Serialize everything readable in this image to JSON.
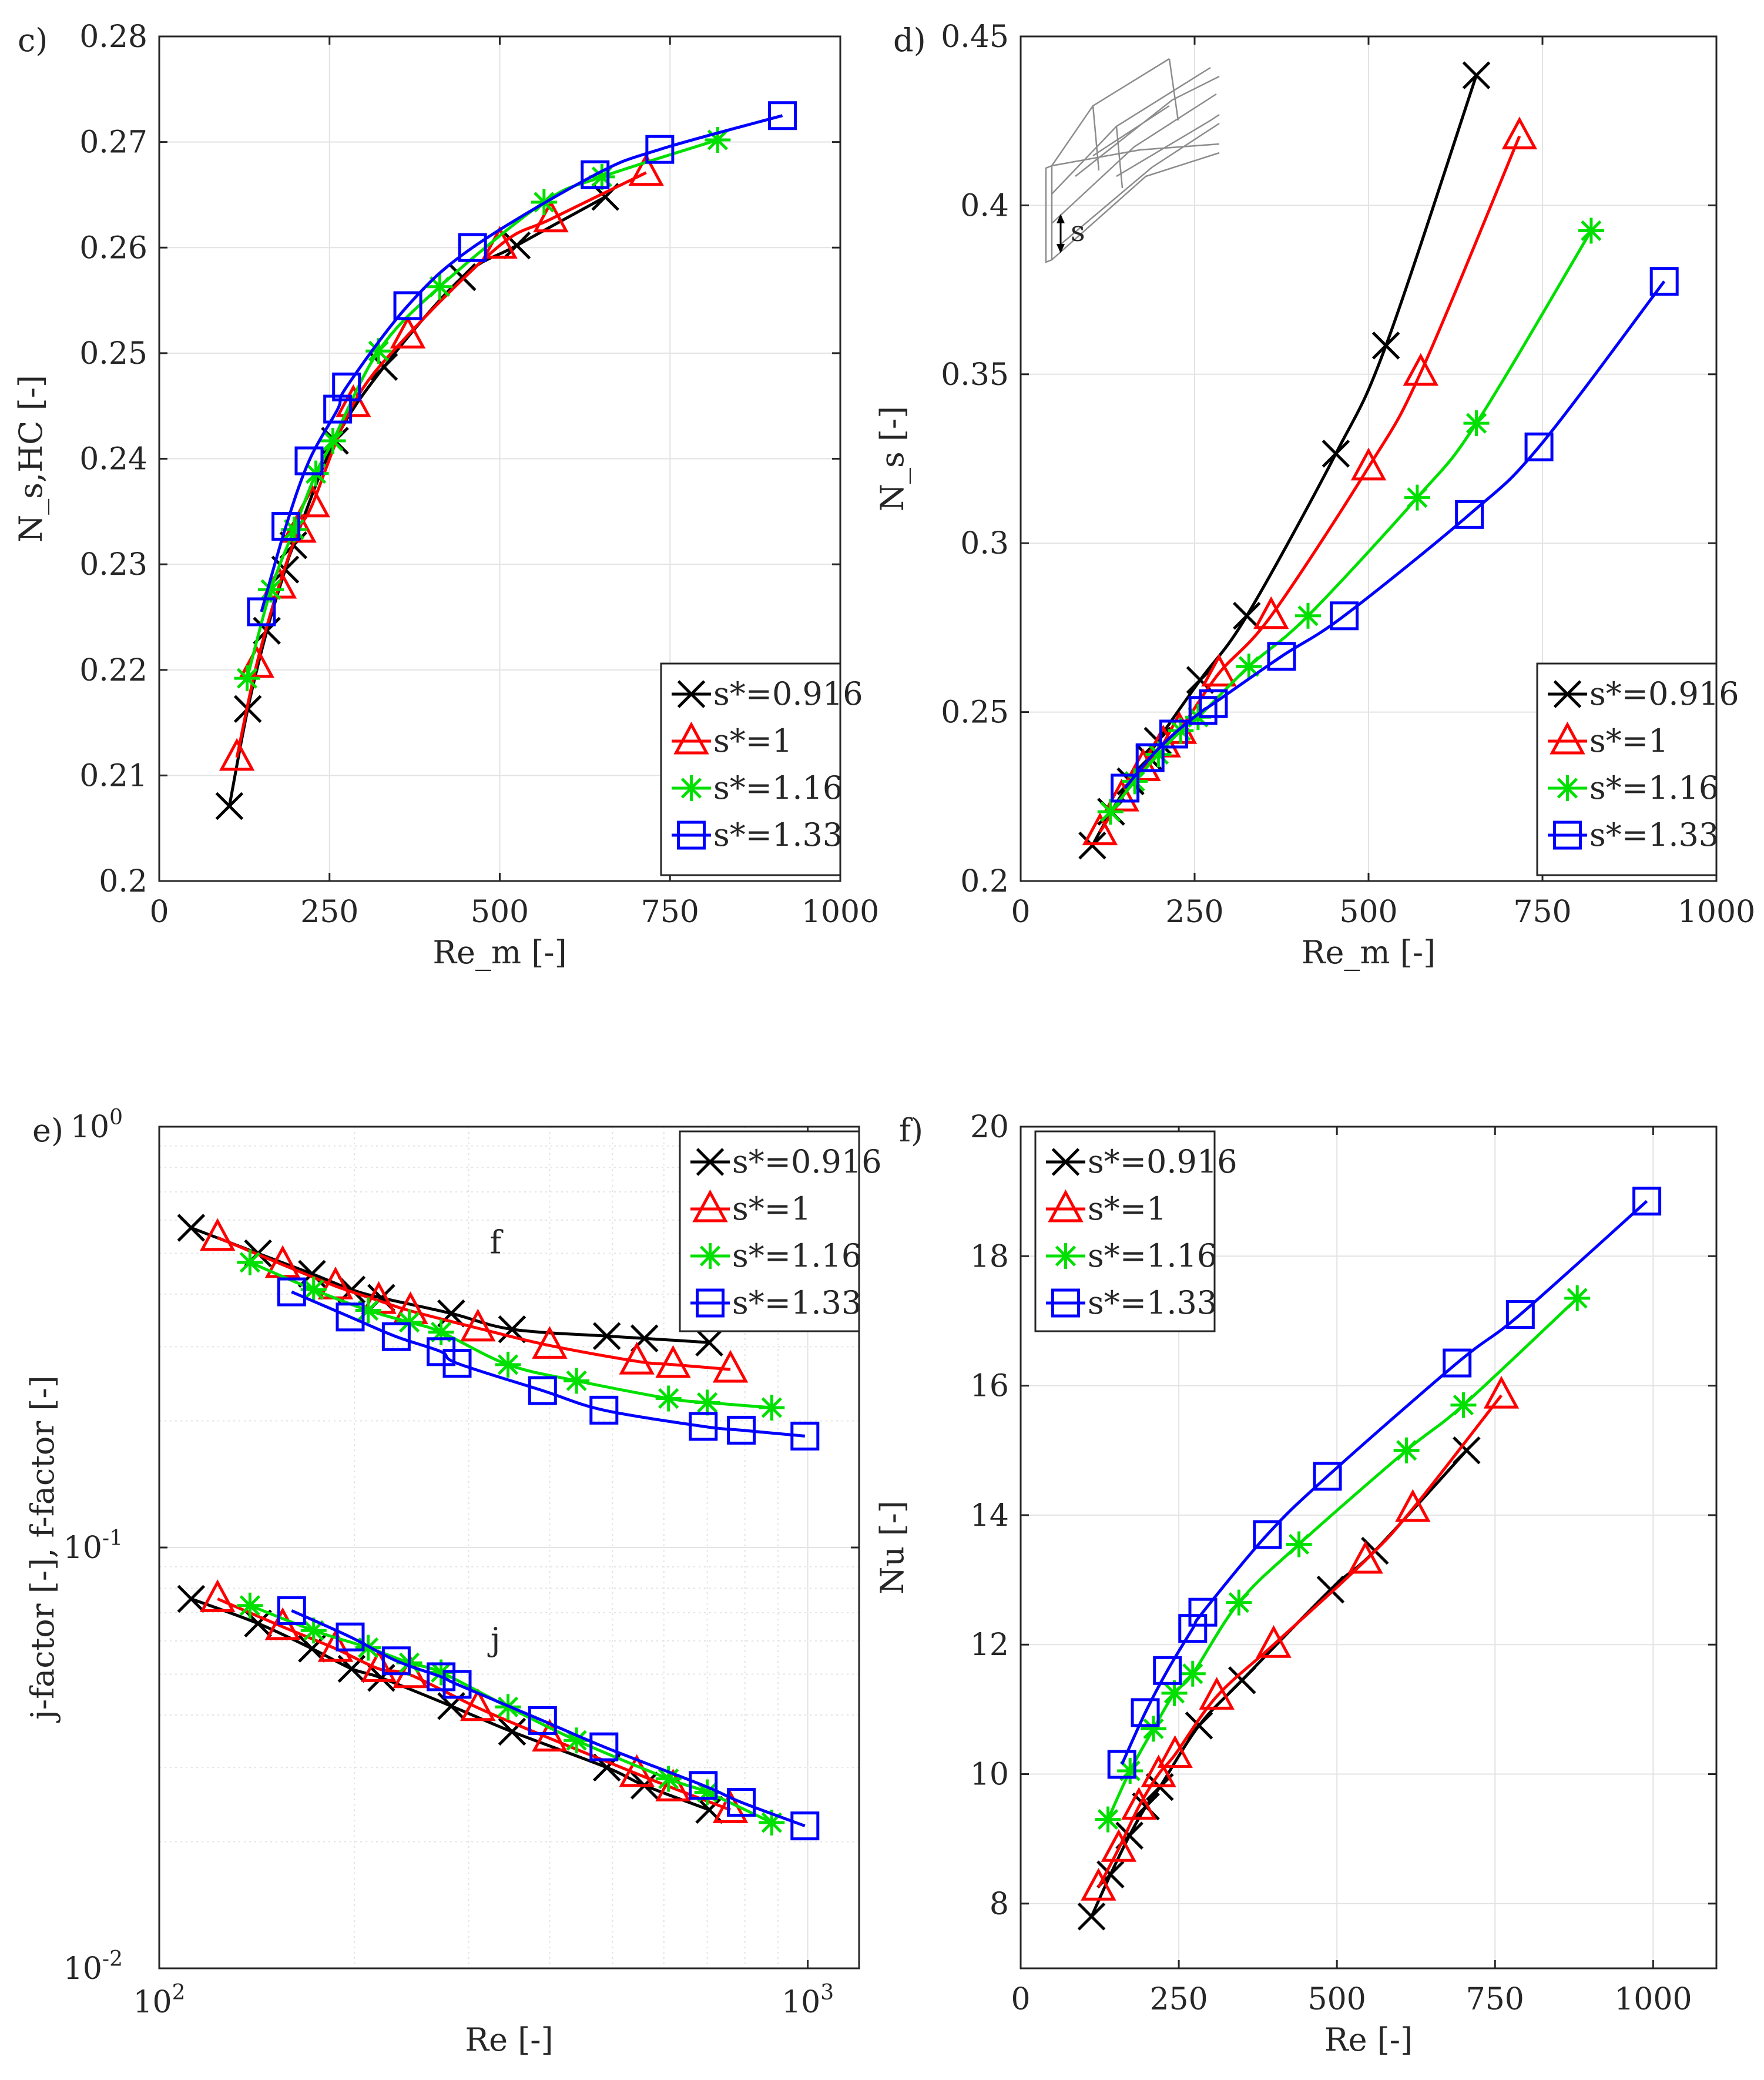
{
  "figure": {
    "panels": [
      {
        "id": "c",
        "label": "c)"
      },
      {
        "id": "d",
        "label": "d)"
      },
      {
        "id": "e",
        "label": "e)"
      },
      {
        "id": "f",
        "label": "f)"
      }
    ]
  },
  "legend_entries": [
    {
      "label": "s*=0.916",
      "color": "#000000",
      "marker": "x"
    },
    {
      "label": "s*=1",
      "color": "#ff0000",
      "marker": "triangle"
    },
    {
      "label": "s*=1.16",
      "color": "#00e000",
      "marker": "asterisk"
    },
    {
      "label": "s*=1.33",
      "color": "#0000ff",
      "marker": "square"
    }
  ],
  "chart_data": [
    {
      "panel": "c",
      "type": "line",
      "xlabel": "Re_m [-]",
      "ylabel": "N_s,HC [-]",
      "xlim": [
        0,
        1000
      ],
      "ylim": [
        0.2,
        0.28
      ],
      "xticks": [
        0,
        250,
        500,
        750,
        1000
      ],
      "yticks": [
        0.2,
        0.21,
        0.22,
        0.23,
        0.24,
        0.25,
        0.26,
        0.27,
        0.28
      ],
      "ytick_labels": [
        "0.2",
        "0.21",
        "0.22",
        "0.23",
        "0.24",
        "0.25",
        "0.26",
        "0.27",
        "0.28"
      ],
      "legend_position": "bottom-right",
      "series": [
        {
          "name": "s*=0.916",
          "x": [
            103,
            130,
            158,
            185,
            197,
            258,
            330,
            445,
            525,
            655
          ],
          "y": [
            0.2071,
            0.2163,
            0.2237,
            0.2295,
            0.2318,
            0.2417,
            0.2487,
            0.2572,
            0.2602,
            0.2648
          ]
        },
        {
          "name": "s*=1",
          "x": [
            114,
            143,
            176,
            205,
            225,
            285,
            365,
            500,
            575,
            715
          ],
          "y": [
            0.2117,
            0.2205,
            0.228,
            0.2333,
            0.2357,
            0.2452,
            0.2517,
            0.2602,
            0.2627,
            0.2671
          ]
        },
        {
          "name": "s*=1.16",
          "x": [
            129,
            164,
            198,
            230,
            255,
            322,
            412,
            565,
            650,
            820
          ],
          "y": [
            0.2192,
            0.2276,
            0.2333,
            0.2386,
            0.2417,
            0.2502,
            0.2563,
            0.2643,
            0.2667,
            0.2702
          ]
        },
        {
          "name": "s*=1.33",
          "x": [
            150,
            186,
            220,
            262,
            275,
            365,
            460,
            640,
            735,
            915
          ],
          "y": [
            0.2255,
            0.2336,
            0.2398,
            0.2447,
            0.2468,
            0.2545,
            0.26,
            0.2669,
            0.2693,
            0.2725
          ]
        }
      ]
    },
    {
      "panel": "d",
      "type": "line",
      "xlabel": "Re_m [-]",
      "ylabel": "N_s [-]",
      "xlim": [
        0,
        1000
      ],
      "ylim": [
        0.2,
        0.45
      ],
      "xticks": [
        0,
        250,
        500,
        750,
        1000
      ],
      "yticks": [
        0.2,
        0.25,
        0.3,
        0.35,
        0.4,
        0.45
      ],
      "ytick_labels": [
        "0.2",
        "0.25",
        "0.3",
        "0.35",
        "0.4",
        "0.45"
      ],
      "legend_position": "bottom-right",
      "inset_label": "s",
      "series": [
        {
          "name": "s*=0.916",
          "x": [
            103,
            130,
            158,
            185,
            197,
            258,
            325,
            453,
            525,
            655
          ],
          "y": [
            0.2105,
            0.2205,
            0.2295,
            0.2365,
            0.2415,
            0.2595,
            0.2785,
            0.3265,
            0.3585,
            0.4385
          ]
        },
        {
          "name": "s*=1",
          "x": [
            114,
            145,
            176,
            205,
            228,
            285,
            360,
            500,
            575,
            717
          ],
          "y": [
            0.2145,
            0.2245,
            0.2335,
            0.2405,
            0.2445,
            0.2615,
            0.2785,
            0.3225,
            0.3505,
            0.4205
          ]
        },
        {
          "name": "s*=1.16",
          "x": [
            129,
            164,
            198,
            230,
            255,
            328,
            413,
            570,
            655,
            820
          ],
          "y": [
            0.2205,
            0.2295,
            0.2375,
            0.2445,
            0.2485,
            0.2635,
            0.2785,
            0.3135,
            0.3355,
            0.3925
          ]
        },
        {
          "name": "s*=1.33",
          "x": [
            150,
            186,
            220,
            262,
            277,
            375,
            465,
            645,
            745,
            925
          ],
          "y": [
            0.2275,
            0.2365,
            0.2435,
            0.2505,
            0.2525,
            0.2665,
            0.2785,
            0.3085,
            0.3285,
            0.3775
          ]
        }
      ]
    },
    {
      "panel": "e",
      "type": "line",
      "scale": "log-log",
      "xlabel": "Re [-]",
      "ylabel": "j-factor [-], f-factor [-]",
      "xlim": [
        100,
        1200
      ],
      "ylim": [
        0.01,
        1
      ],
      "xticks": [
        100,
        1000
      ],
      "xtick_labels": [
        {
          "base": "10",
          "exp": "2"
        },
        {
          "base": "10",
          "exp": "3"
        }
      ],
      "yticks": [
        0.01,
        0.1,
        1
      ],
      "ytick_labels": [
        {
          "base": "10",
          "exp": "-2"
        },
        {
          "base": "10",
          "exp": "-1"
        },
        {
          "base": "10",
          "exp": "0"
        }
      ],
      "legend_position": "top-right",
      "curve_labels": [
        {
          "text": "f",
          "x": 330,
          "y": 0.5
        },
        {
          "text": "j",
          "x": 330,
          "y": 0.057
        }
      ],
      "series": [
        {
          "name": "s*=0.916 (f)",
          "x": [
            112,
            142,
            172,
            198,
            220,
            282,
            350,
            490,
            560,
            705
          ],
          "y": [
            0.575,
            0.5,
            0.447,
            0.41,
            0.392,
            0.36,
            0.33,
            0.318,
            0.314,
            0.307
          ]
        },
        {
          "name": "s*=1 (f)",
          "x": [
            123,
            155,
            187,
            218,
            244,
            310,
            400,
            545,
            620,
            760
          ],
          "y": [
            0.545,
            0.47,
            0.418,
            0.386,
            0.365,
            0.332,
            0.302,
            0.277,
            0.272,
            0.265
          ]
        },
        {
          "name": "s*=1.16 (f)",
          "x": [
            138,
            173,
            210,
            243,
            272,
            345,
            440,
            610,
            700,
            880
          ],
          "y": [
            0.476,
            0.41,
            0.366,
            0.343,
            0.325,
            0.272,
            0.249,
            0.226,
            0.221,
            0.215
          ]
        },
        {
          "name": "s*=1.33 (f)",
          "x": [
            160,
            197,
            232,
            272,
            288,
            390,
            485,
            690,
            790,
            990
          ],
          "y": [
            0.405,
            0.353,
            0.317,
            0.292,
            0.274,
            0.236,
            0.212,
            0.194,
            0.19,
            0.184
          ]
        },
        {
          "name": "s*=0.916 (j)",
          "x": [
            112,
            142,
            172,
            198,
            220,
            282,
            350,
            490,
            560,
            705
          ],
          "y": [
            0.0755,
            0.066,
            0.0575,
            0.0515,
            0.049,
            0.042,
            0.0365,
            0.03,
            0.0272,
            0.0238
          ]
        },
        {
          "name": "s*=1 (j)",
          "x": [
            123,
            155,
            187,
            218,
            244,
            310,
            400,
            545,
            620,
            760
          ],
          "y": [
            0.0755,
            0.0648,
            0.0575,
            0.0515,
            0.0498,
            0.0416,
            0.0352,
            0.029,
            0.0268,
            0.0238
          ]
        },
        {
          "name": "s*=1.16 (j)",
          "x": [
            138,
            173,
            210,
            243,
            272,
            345,
            440,
            610,
            700,
            880
          ],
          "y": [
            0.0728,
            0.0635,
            0.0578,
            0.0532,
            0.0505,
            0.0418,
            0.0348,
            0.0282,
            0.0262,
            0.0222
          ]
        },
        {
          "name": "s*=1.33 (j)",
          "x": [
            160,
            197,
            232,
            272,
            288,
            390,
            485,
            690,
            790,
            990
          ],
          "y": [
            0.0708,
            0.0613,
            0.0538,
            0.0493,
            0.0473,
            0.0388,
            0.0336,
            0.0272,
            0.0248,
            0.0218
          ]
        }
      ]
    },
    {
      "panel": "f",
      "type": "line",
      "xlabel": "Re [-]",
      "ylabel": "Nu [-]",
      "xlim": [
        0,
        1100
      ],
      "ylim": [
        7,
        20
      ],
      "xticks": [
        0,
        250,
        500,
        750,
        1000
      ],
      "yticks": [
        8,
        10,
        12,
        14,
        16,
        18,
        20
      ],
      "ytick_labels": [
        "8",
        "10",
        "12",
        "14",
        "16",
        "18",
        "20"
      ],
      "legend_position": "top-left",
      "series": [
        {
          "name": "s*=0.916",
          "x": [
            112,
            142,
            172,
            198,
            220,
            282,
            350,
            490,
            560,
            705
          ],
          "y": [
            7.8,
            8.45,
            9.05,
            9.5,
            9.8,
            10.75,
            11.45,
            12.85,
            13.45,
            15.0
          ]
        },
        {
          "name": "s*=1",
          "x": [
            123,
            155,
            187,
            218,
            244,
            310,
            400,
            545,
            620,
            760
          ],
          "y": [
            8.25,
            8.85,
            9.5,
            10.0,
            10.3,
            11.2,
            12.0,
            13.3,
            14.1,
            15.85
          ]
        },
        {
          "name": "s*=1.16",
          "x": [
            138,
            173,
            210,
            243,
            272,
            345,
            440,
            610,
            700,
            880
          ],
          "y": [
            9.3,
            10.05,
            10.7,
            11.25,
            11.55,
            12.65,
            13.55,
            15.0,
            15.7,
            17.35
          ]
        },
        {
          "name": "s*=1.33",
          "x": [
            160,
            197,
            232,
            272,
            288,
            390,
            485,
            690,
            790,
            990
          ],
          "y": [
            10.15,
            10.95,
            11.6,
            12.25,
            12.5,
            13.7,
            14.6,
            16.35,
            17.1,
            18.85
          ]
        }
      ]
    }
  ]
}
